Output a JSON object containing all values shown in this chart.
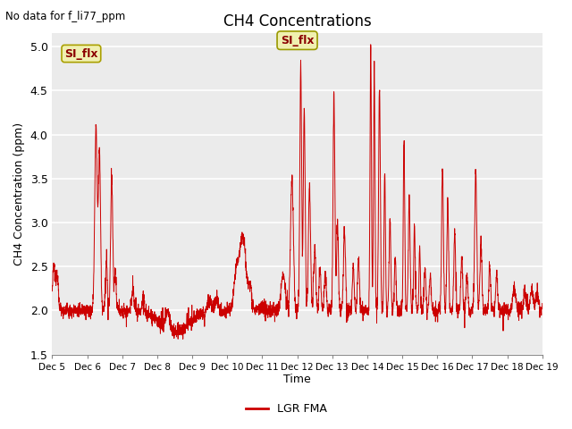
{
  "title": "CH4 Concentrations",
  "xlabel": "Time",
  "ylabel": "CH4 Concentration (ppm)",
  "top_left_text": "No data for f_li77_ppm",
  "legend_label": "LGR FMA",
  "si_flx_label": "SI_flx",
  "ylim": [
    1.5,
    5.15
  ],
  "yticks": [
    1.5,
    2.0,
    2.5,
    3.0,
    3.5,
    4.0,
    4.5,
    5.0
  ],
  "line_color": "#cc0000",
  "background_color": "#ffffff",
  "plot_bg_color": "#ebebeb",
  "grid_color": "#ffffff",
  "xtick_labels": [
    "Dec 5",
    "Dec 6",
    "Dec 7",
    "Dec 8",
    "Dec 9",
    "Dec 10",
    "Dec 11",
    "Dec 12",
    "Dec 13",
    "Dec 14",
    "Dec 15",
    "Dec 16",
    "Dec 17",
    "Dec 18",
    "Dec 19"
  ],
  "figsize": [
    6.4,
    4.8
  ],
  "dpi": 100
}
